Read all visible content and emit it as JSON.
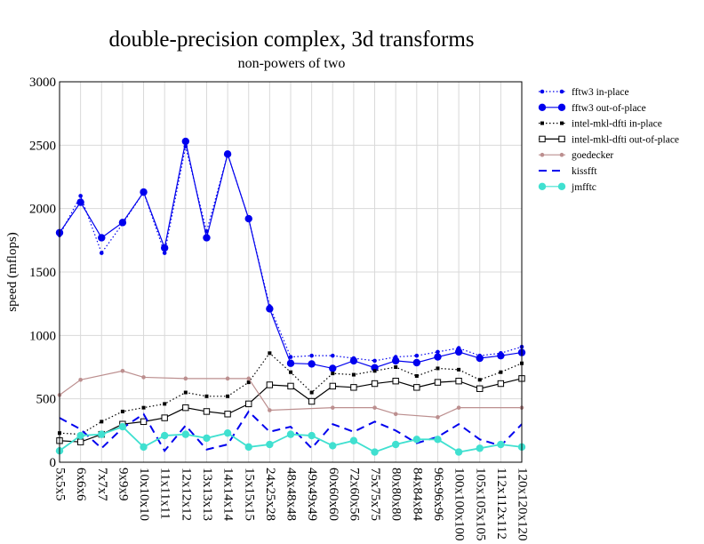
{
  "chart_data": {
    "type": "line",
    "title": "double-precision complex, 3d transforms",
    "subtitle": "non-powers of two",
    "ylabel": "speed (mflops)",
    "xlabel": "",
    "ylim": [
      0,
      3000
    ],
    "yticks": [
      0,
      500,
      1000,
      1500,
      2000,
      2500,
      3000
    ],
    "grid": true,
    "legend_position": "right",
    "categories": [
      "5x5x5",
      "6x6x6",
      "7x7x7",
      "9x9x9",
      "10x10x10",
      "11x11x11",
      "12x12x12",
      "13x13x13",
      "14x14x14",
      "15x15x15",
      "24x25x28",
      "48x48x48",
      "49x49x49",
      "60x60x60",
      "72x60x56",
      "75x75x75",
      "80x80x80",
      "84x84x84",
      "96x96x96",
      "100x100x100",
      "105x105x105",
      "112x112x112",
      "120x120x120"
    ],
    "series": [
      {
        "name": "fftw3 in-place",
        "color": "#0000ee",
        "dash": "dotted",
        "marker": "small-dot",
        "values": [
          1790,
          2100,
          1650,
          1880,
          2130,
          1650,
          2490,
          1820,
          2430,
          1920,
          1230,
          830,
          840,
          840,
          820,
          800,
          830,
          840,
          870,
          900,
          840,
          860,
          910
        ]
      },
      {
        "name": "fftw3 out-of-place",
        "color": "#0000ee",
        "dash": "solid",
        "marker": "big-dot",
        "values": [
          1810,
          2050,
          1770,
          1890,
          2130,
          1690,
          2530,
          1770,
          2430,
          1920,
          1210,
          780,
          775,
          740,
          800,
          745,
          800,
          785,
          830,
          870,
          820,
          840,
          865
        ]
      },
      {
        "name": "intel-mkl-dfti in-place",
        "color": "#000000",
        "dash": "dotted",
        "marker": "small-square",
        "values": [
          230,
          220,
          320,
          400,
          430,
          460,
          550,
          520,
          520,
          630,
          860,
          710,
          550,
          700,
          690,
          720,
          750,
          680,
          740,
          730,
          650,
          710,
          780
        ]
      },
      {
        "name": "intel-mkl-dfti out-of-place",
        "color": "#000000",
        "dash": "solid",
        "marker": "open-square",
        "values": [
          170,
          160,
          220,
          300,
          320,
          350,
          430,
          400,
          380,
          460,
          610,
          600,
          480,
          600,
          590,
          620,
          640,
          590,
          630,
          640,
          580,
          620,
          660
        ]
      },
      {
        "name": "goedecker",
        "color": "#bc8f8f",
        "dash": "solid",
        "marker": "small-dot",
        "values": [
          530,
          650,
          null,
          720,
          670,
          null,
          660,
          null,
          660,
          660,
          410,
          null,
          null,
          430,
          null,
          430,
          380,
          null,
          355,
          430,
          null,
          null,
          430
        ]
      },
      {
        "name": "kissfft",
        "color": "#0000ee",
        "dash": "dashed",
        "marker": "none",
        "values": [
          350,
          260,
          110,
          270,
          380,
          90,
          290,
          100,
          140,
          400,
          240,
          280,
          110,
          300,
          240,
          320,
          250,
          150,
          200,
          300,
          180,
          130,
          300
        ]
      },
      {
        "name": "jmfftc",
        "color": "#40e0d0",
        "dash": "solid",
        "marker": "big-dot",
        "values": [
          90,
          210,
          220,
          280,
          120,
          210,
          220,
          190,
          230,
          120,
          140,
          220,
          210,
          130,
          170,
          80,
          140,
          180,
          180,
          80,
          110,
          140,
          120
        ]
      }
    ]
  }
}
